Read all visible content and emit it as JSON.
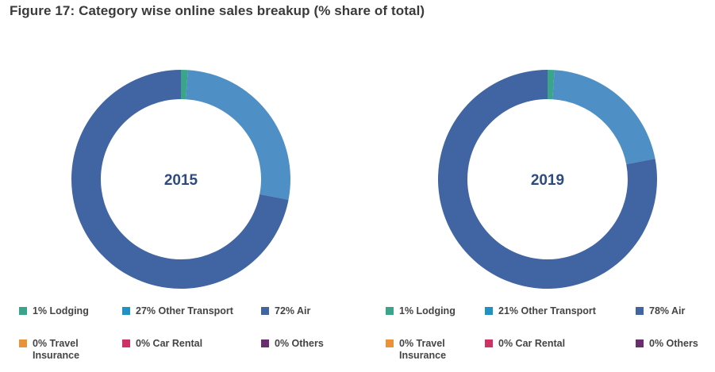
{
  "title": "Figure 17: Category wise online sales breakup (% share of total)",
  "colors": {
    "lodging": "#3aa58a",
    "other_transport": "#1f91c4",
    "air": "#4164a3",
    "travel_insurance": "#e8923a",
    "car_rental": "#cf3163",
    "others": "#6a2d70",
    "other_transport_ring": "#4e8fc6",
    "center_label": "#2e4a7e"
  },
  "chart_data": [
    {
      "type": "pie",
      "title": "2015",
      "categories": [
        "Lodging",
        "Other Transport",
        "Air",
        "Travel Insurance",
        "Car Rental",
        "Others"
      ],
      "values": [
        1,
        27,
        72,
        0,
        0,
        0
      ],
      "legend": [
        "1% Lodging",
        "27% Other Transport",
        "72% Air",
        "0% Travel Insurance",
        "0% Car Rental",
        "0% Others"
      ]
    },
    {
      "type": "pie",
      "title": "2019",
      "categories": [
        "Lodging",
        "Other Transport",
        "Air",
        "Travel Insurance",
        "Car Rental",
        "Others"
      ],
      "values": [
        1,
        21,
        78,
        0,
        0,
        0
      ],
      "legend": [
        "1% Lodging",
        "21% Other Transport",
        "78% Air",
        "0% Travel Insurance",
        "0% Car Rental",
        "0% Others"
      ]
    }
  ]
}
